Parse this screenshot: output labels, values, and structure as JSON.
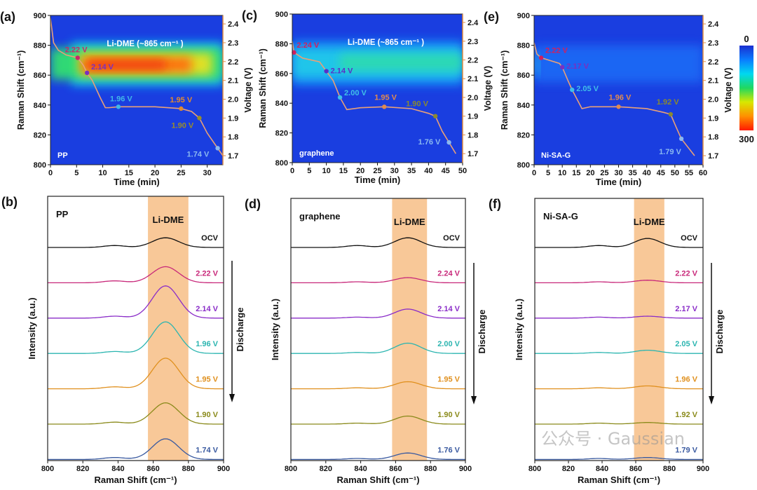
{
  "watermark": "公众号 · Gaussian",
  "colorbar": {
    "min_label": "0",
    "max_label": "300",
    "colors": [
      "#1a2fd0",
      "#0a7cff",
      "#00d8f0",
      "#20d860",
      "#d8e800",
      "#ff9000",
      "#ff1a00"
    ]
  },
  "chart_data": [
    {
      "panel": "(a)",
      "type": "heatmap",
      "sample": "PP",
      "annotation": "Li-DME (~865 cm⁻¹ )",
      "xlabel": "Time (min)",
      "ylabel": "Raman Shift (cm⁻¹)",
      "y2label": "Voltage (V)",
      "xlim": [
        0,
        33
      ],
      "xticks": [
        0,
        5,
        10,
        15,
        20,
        25,
        30
      ],
      "ylim": [
        800,
        900
      ],
      "yticks": [
        800,
        820,
        840,
        860,
        880,
        900
      ],
      "y2lim": [
        1.652,
        2.445
      ],
      "y2ticks": [
        1.7,
        1.8,
        1.9,
        2.0,
        2.1,
        2.2,
        2.3,
        2.4
      ],
      "bands": [
        {
          "color": "#12c8f0",
          "raman": [
            853,
            882
          ],
          "time": [
            4,
            33
          ],
          "opacity": 0.9
        },
        {
          "color": "#30e070",
          "raman": [
            857,
            878
          ],
          "time": [
            0,
            33
          ],
          "opacity": 0.95
        },
        {
          "color": "#e8e020",
          "raman": [
            860,
            875
          ],
          "time": [
            5.5,
            31
          ],
          "opacity": 0.95
        },
        {
          "color": "#ff6a10",
          "raman": [
            862,
            872
          ],
          "time": [
            6,
            27
          ],
          "opacity": 0.95
        },
        {
          "color": "#ee2a10",
          "raman": [
            864,
            870
          ],
          "time": [
            7,
            22
          ],
          "opacity": 0.8
        }
      ],
      "voltage_curve": {
        "time": [
          0,
          0.6,
          1.5,
          3,
          5.2,
          6.3,
          7,
          8,
          9.5,
          10.5,
          11.2,
          13,
          20,
          25,
          27,
          28.5,
          30,
          32,
          33
        ],
        "voltage": [
          2.43,
          2.3,
          2.26,
          2.235,
          2.22,
          2.18,
          2.14,
          2.1,
          2.01,
          1.955,
          1.955,
          1.96,
          1.96,
          1.95,
          1.935,
          1.9,
          1.82,
          1.74,
          1.7
        ]
      },
      "markers": [
        {
          "label": "2.22 V",
          "time": 5.2,
          "voltage": 2.22,
          "color": "#c8286a"
        },
        {
          "label": "2.14 V",
          "time": 7,
          "voltage": 2.14,
          "color": "#7a30c0"
        },
        {
          "label": "1.96 V",
          "time": 13,
          "voltage": 1.96,
          "color": "#40b8e8"
        },
        {
          "label": "1.95 V",
          "time": 25,
          "voltage": 1.95,
          "color": "#e08a30"
        },
        {
          "label": "1.90 V",
          "time": 28.5,
          "voltage": 1.9,
          "color": "#9a8e2a"
        },
        {
          "label": "1.74 V",
          "time": 32,
          "voltage": 1.74,
          "color": "#8ab8f0"
        }
      ]
    },
    {
      "panel": "(c)",
      "type": "heatmap",
      "sample": "graphene",
      "annotation": "Li-DME (~865 cm⁻¹ )",
      "xlabel": "Time (min)",
      "ylabel": "Raman Shift (cm⁻¹)",
      "y2label": "Voltage (V)",
      "xlim": [
        0,
        50
      ],
      "xticks": [
        0,
        5,
        10,
        15,
        20,
        25,
        30,
        35,
        40,
        45,
        50
      ],
      "ylim": [
        800,
        900
      ],
      "yticks": [
        800,
        820,
        840,
        860,
        880,
        900
      ],
      "y2lim": [
        1.652,
        2.445
      ],
      "y2ticks": [
        1.7,
        1.8,
        1.9,
        2.0,
        2.1,
        2.2,
        2.3,
        2.4
      ],
      "bands": [
        {
          "color": "#1890f8",
          "raman": [
            852,
            882
          ],
          "time": [
            0,
            50
          ],
          "opacity": 0.9
        },
        {
          "color": "#20d0e8",
          "raman": [
            857,
            877
          ],
          "time": [
            0,
            50
          ],
          "opacity": 0.85
        },
        {
          "color": "#30e0a0",
          "raman": [
            862,
            873
          ],
          "time": [
            14,
            50
          ],
          "opacity": 0.75
        }
      ],
      "voltage_curve": {
        "time": [
          0,
          0.5,
          3,
          8,
          10,
          12,
          14,
          16,
          20,
          27,
          35,
          40,
          42,
          44,
          46,
          48
        ],
        "voltage": [
          2.3,
          2.24,
          2.21,
          2.19,
          2.14,
          2.09,
          2.0,
          1.935,
          1.945,
          1.95,
          1.94,
          1.915,
          1.9,
          1.82,
          1.76,
          1.7
        ]
      },
      "markers": [
        {
          "label": "2.24 V",
          "time": 0.5,
          "voltage": 2.24,
          "color": "#d02060"
        },
        {
          "label": "2.14 V",
          "time": 10,
          "voltage": 2.14,
          "color": "#5a30c8"
        },
        {
          "label": "2.00 V",
          "time": 14,
          "voltage": 2.0,
          "color": "#40c0e8"
        },
        {
          "label": "1.95 V",
          "time": 27,
          "voltage": 1.95,
          "color": "#e08a50"
        },
        {
          "label": "1.90 V",
          "time": 42,
          "voltage": 1.9,
          "color": "#8a8a30"
        },
        {
          "label": "1.76 V",
          "time": 46,
          "voltage": 1.76,
          "color": "#8ab8f0"
        }
      ]
    },
    {
      "panel": "(e)",
      "type": "heatmap",
      "sample": "Ni-SA-G",
      "annotation": "",
      "xlabel": "Time (min)",
      "ylabel": "Raman Shift (cm⁻¹)",
      "y2label": "Voltage (V)",
      "xlim": [
        0,
        60
      ],
      "xticks": [
        0,
        5,
        10,
        15,
        20,
        25,
        30,
        35,
        40,
        45,
        50,
        55,
        60
      ],
      "ylim": [
        800,
        900
      ],
      "yticks": [
        800,
        820,
        840,
        860,
        880,
        900
      ],
      "y2lim": [
        1.652,
        2.445
      ],
      "y2ticks": [
        1.7,
        1.8,
        1.9,
        2.0,
        2.1,
        2.2,
        2.3,
        2.4
      ],
      "bands": [
        {
          "color": "#1e70f8",
          "raman": [
            855,
            880
          ],
          "time": [
            0,
            60
          ],
          "opacity": 0.8
        },
        {
          "color": "#20c0f0",
          "raman": [
            860,
            874
          ],
          "time": [
            0,
            2
          ],
          "opacity": 0.8
        }
      ],
      "voltage_curve": {
        "time": [
          0,
          1,
          2.5,
          9,
          10,
          12,
          13.5,
          17,
          20,
          30,
          40,
          46,
          48.5,
          50.5,
          52.3,
          57
        ],
        "voltage": [
          2.3,
          2.24,
          2.22,
          2.19,
          2.17,
          2.1,
          2.05,
          1.95,
          1.96,
          1.96,
          1.95,
          1.93,
          1.92,
          1.85,
          1.79,
          1.7
        ]
      },
      "markers": [
        {
          "label": "2.22 V",
          "time": 2.5,
          "voltage": 2.22,
          "color": "#d02060"
        },
        {
          "label": "2.17 V",
          "time": 10,
          "voltage": 2.17,
          "color": "#7a30c0"
        },
        {
          "label": "2.05 V",
          "time": 13.5,
          "voltage": 2.05,
          "color": "#40c0e8"
        },
        {
          "label": "1.96 V",
          "time": 30,
          "voltage": 1.96,
          "color": "#e08a50"
        },
        {
          "label": "1.92 V",
          "time": 48.5,
          "voltage": 1.92,
          "color": "#8a8a30"
        },
        {
          "label": "1.79 V",
          "time": 52.3,
          "voltage": 1.79,
          "color": "#8ab8f0"
        }
      ]
    },
    {
      "panel": "(b)",
      "type": "line",
      "sample": "PP",
      "band_label": "Li-DME",
      "band_range": [
        857,
        880
      ],
      "xlabel": "Raman Shift (cm⁻¹)",
      "ylabel": "Intensity (a.u.)",
      "arrow_label": "Discharge",
      "xlim": [
        800,
        900
      ],
      "xticks": [
        800,
        820,
        840,
        860,
        880,
        900
      ],
      "peak_center": 867,
      "series": [
        {
          "name": "OCV",
          "color": "#111111",
          "peak_height": 30
        },
        {
          "name": "2.22 V",
          "color": "#c8287a",
          "peak_height": 50
        },
        {
          "name": "2.14 V",
          "color": "#8a2cc8",
          "peak_height": 100
        },
        {
          "name": "1.96 V",
          "color": "#2bb5b0",
          "peak_height": 98
        },
        {
          "name": "1.95 V",
          "color": "#e0901e",
          "peak_height": 95
        },
        {
          "name": "1.90 V",
          "color": "#8a8a1a",
          "peak_height": 66
        },
        {
          "name": "1.74 V",
          "color": "#3a5aa0",
          "peak_height": 64
        }
      ]
    },
    {
      "panel": "(d)",
      "type": "line",
      "sample": "graphene",
      "band_label": "Li-DME",
      "band_range": [
        858,
        878
      ],
      "xlabel": "Raman Shift (cm⁻¹)",
      "ylabel": "Intensity (a.u.)",
      "arrow_label": "Discharge",
      "xlim": [
        800,
        900
      ],
      "xticks": [
        800,
        820,
        840,
        860,
        880,
        900
      ],
      "peak_center": 867,
      "series": [
        {
          "name": "OCV",
          "color": "#111111",
          "peak_height": 30
        },
        {
          "name": "2.24 V",
          "color": "#c8287a",
          "peak_height": 16
        },
        {
          "name": "2.14 V",
          "color": "#8a2cc8",
          "peak_height": 28
        },
        {
          "name": "2.00 V",
          "color": "#2bb5b0",
          "peak_height": 32
        },
        {
          "name": "1.95 V",
          "color": "#e0901e",
          "peak_height": 22
        },
        {
          "name": "1.90 V",
          "color": "#8a8a1a",
          "peak_height": 25
        },
        {
          "name": "1.76 V",
          "color": "#3a5aa0",
          "peak_height": 20
        }
      ]
    },
    {
      "panel": "(f)",
      "type": "line",
      "sample": "Ni-SA-G",
      "band_label": "Li-DME",
      "band_range": [
        859,
        877
      ],
      "xlabel": "Raman Shift (cm⁻¹)",
      "ylabel": "Intensity (a.u.)",
      "arrow_label": "Discharge",
      "xlim": [
        800,
        900
      ],
      "xticks": [
        800,
        820,
        840,
        860,
        880,
        900
      ],
      "peak_center": 867,
      "series": [
        {
          "name": "OCV",
          "color": "#111111",
          "peak_height": 28
        },
        {
          "name": "2.22 V",
          "color": "#c8287a",
          "peak_height": 8
        },
        {
          "name": "2.17 V",
          "color": "#8a2cc8",
          "peak_height": 6
        },
        {
          "name": "2.05 V",
          "color": "#2bb5b0",
          "peak_height": 10
        },
        {
          "name": "1.96 V",
          "color": "#e0901e",
          "peak_height": 9
        },
        {
          "name": "1.92 V",
          "color": "#8a8a1a",
          "peak_height": 5
        },
        {
          "name": "1.79 V",
          "color": "#3a5aa0",
          "peak_height": 6
        }
      ]
    }
  ]
}
